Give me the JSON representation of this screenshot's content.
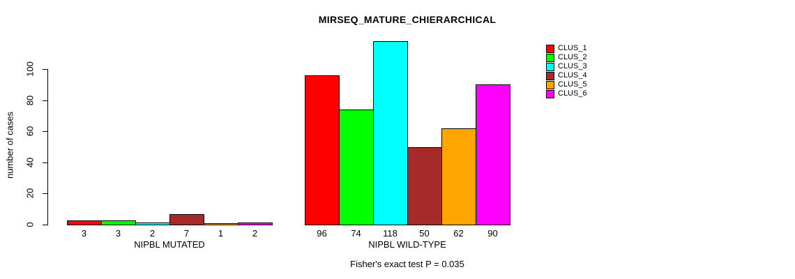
{
  "chart_data": {
    "type": "bar",
    "title": "MIRSEQ_MATURE_CHIERARCHICAL",
    "ylabel": "number of cases",
    "xlabel": "",
    "ylim": [
      0,
      100
    ],
    "yticks": [
      0,
      20,
      40,
      60,
      80,
      100
    ],
    "grid": false,
    "legend_position": "right",
    "series_colors": [
      "#FF0000",
      "#00FF00",
      "#00FFFF",
      "#A52A2A",
      "#FFA500",
      "#FF00FF"
    ],
    "groups": [
      {
        "label": "NIPBL MUTATED",
        "values": [
          3,
          3,
          2,
          7,
          1,
          2
        ]
      },
      {
        "label": "NIPBL WILD-TYPE",
        "values": [
          96,
          74,
          118,
          50,
          62,
          90
        ]
      }
    ],
    "legend": [
      {
        "label": "CLUS_1",
        "color": "#FF0000"
      },
      {
        "label": "CLUS_2",
        "color": "#00FF00"
      },
      {
        "label": "CLUS_3",
        "color": "#00FFFF"
      },
      {
        "label": "CLUS_4",
        "color": "#A52A2A"
      },
      {
        "label": "CLUS_5",
        "color": "#FFA500"
      },
      {
        "label": "CLUS_6",
        "color": "#FF00FF"
      }
    ],
    "annotation": "Fisher's exact test P = 0.035"
  }
}
